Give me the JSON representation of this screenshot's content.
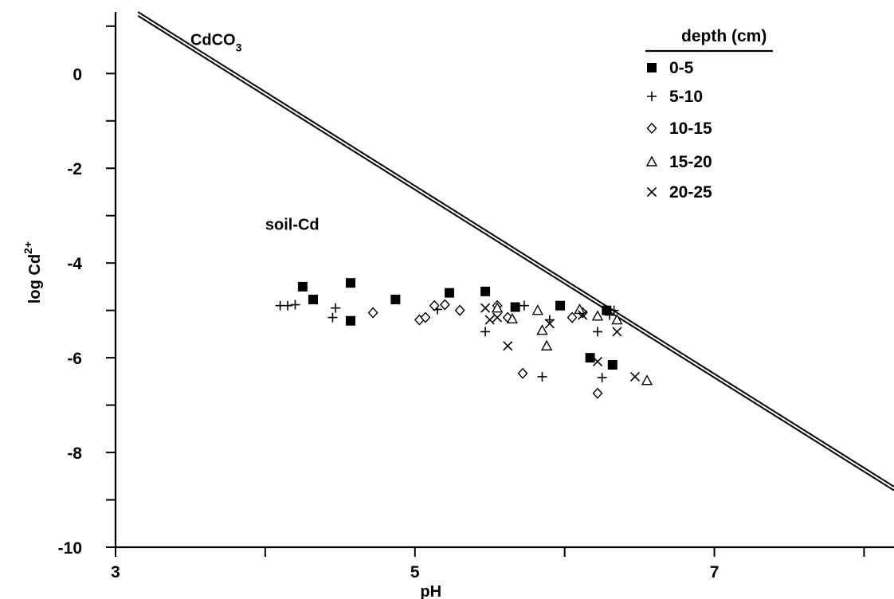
{
  "chart_data": {
    "type": "scatter",
    "xlabel": "pH",
    "ylabel_base": "log Cd",
    "ylabel_sup": "2+",
    "xlim": [
      3,
      8.2
    ],
    "ylim": [
      -10,
      1.3
    ],
    "xticks": [
      3,
      5,
      7
    ],
    "xminor": [
      4,
      6,
      8
    ],
    "yticks": [
      0,
      -2,
      -4,
      -6,
      -8,
      -10
    ],
    "yminor": [
      1,
      -1,
      -3,
      -5,
      -7,
      -9
    ],
    "legend_title": "depth (cm)",
    "legend_position": "top-right",
    "annotations": [
      {
        "id": "cdco3",
        "base": "CdCO",
        "sub": "3",
        "x": 3.5,
        "y": 0.6
      },
      {
        "id": "soil-cd",
        "base": "soil-Cd",
        "x": 4.0,
        "y": -3.3
      }
    ],
    "lines": [
      {
        "name": "CdCO3",
        "points": [
          [
            3.15,
            1.3
          ],
          [
            8.2,
            -8.72
          ]
        ]
      },
      {
        "name": "CdCO3",
        "points": [
          [
            3.15,
            1.22
          ],
          [
            8.2,
            -8.8
          ]
        ]
      }
    ],
    "series": [
      {
        "name": "0-5",
        "marker": "square",
        "points": [
          [
            4.25,
            -4.5
          ],
          [
            4.32,
            -4.77
          ],
          [
            4.57,
            -4.42
          ],
          [
            4.57,
            -5.22
          ],
          [
            4.87,
            -4.77
          ],
          [
            5.23,
            -4.63
          ],
          [
            5.47,
            -4.6
          ],
          [
            5.67,
            -4.93
          ],
          [
            5.97,
            -4.9
          ],
          [
            6.17,
            -6.0
          ],
          [
            6.28,
            -5.0
          ],
          [
            6.32,
            -6.15
          ]
        ]
      },
      {
        "name": "5-10",
        "marker": "plus",
        "points": [
          [
            4.1,
            -4.9
          ],
          [
            4.15,
            -4.9
          ],
          [
            4.2,
            -4.88
          ],
          [
            4.45,
            -5.15
          ],
          [
            4.47,
            -4.95
          ],
          [
            5.15,
            -4.98
          ],
          [
            5.47,
            -5.45
          ],
          [
            5.73,
            -4.9
          ],
          [
            5.85,
            -6.4
          ],
          [
            5.9,
            -5.2
          ],
          [
            6.22,
            -5.45
          ],
          [
            6.25,
            -6.42
          ],
          [
            6.3,
            -5.1
          ],
          [
            6.33,
            -5.0
          ]
        ]
      },
      {
        "name": "10-15",
        "marker": "diamond",
        "points": [
          [
            4.72,
            -5.05
          ],
          [
            5.03,
            -5.2
          ],
          [
            5.07,
            -5.15
          ],
          [
            5.13,
            -4.9
          ],
          [
            5.2,
            -4.88
          ],
          [
            5.3,
            -5.0
          ],
          [
            5.55,
            -4.9
          ],
          [
            5.62,
            -5.15
          ],
          [
            5.72,
            -6.33
          ],
          [
            6.05,
            -5.15
          ],
          [
            6.12,
            -5.05
          ],
          [
            6.22,
            -6.75
          ]
        ]
      },
      {
        "name": "15-20",
        "marker": "triangle",
        "points": [
          [
            5.55,
            -4.95
          ],
          [
            5.65,
            -5.18
          ],
          [
            5.82,
            -5.0
          ],
          [
            5.85,
            -5.42
          ],
          [
            5.88,
            -5.75
          ],
          [
            6.1,
            -4.98
          ],
          [
            6.22,
            -5.12
          ],
          [
            6.35,
            -5.2
          ],
          [
            6.55,
            -6.48
          ]
        ]
      },
      {
        "name": "20-25",
        "marker": "cross",
        "points": [
          [
            5.47,
            -4.95
          ],
          [
            5.5,
            -5.2
          ],
          [
            5.55,
            -5.15
          ],
          [
            5.62,
            -5.75
          ],
          [
            5.67,
            -4.93
          ],
          [
            5.9,
            -5.28
          ],
          [
            6.12,
            -5.1
          ],
          [
            6.22,
            -6.08
          ],
          [
            6.35,
            -5.45
          ],
          [
            6.47,
            -6.4
          ]
        ]
      }
    ]
  }
}
